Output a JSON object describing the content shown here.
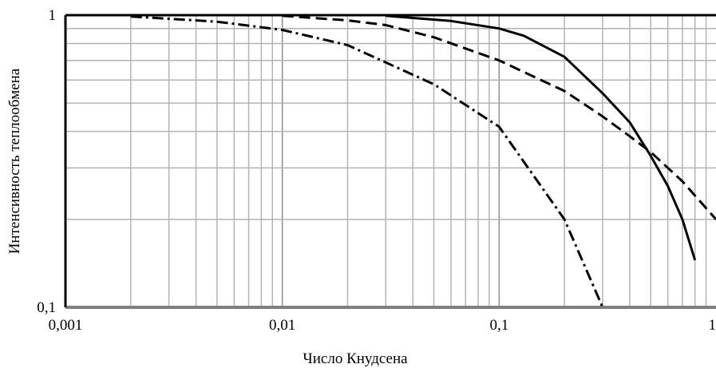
{
  "chart_data": {
    "type": "line",
    "x_scale": "log",
    "y_scale": "log",
    "xlabel": "Число Кнудсена",
    "ylabel": "Интенсивность теплообмена",
    "xlim": [
      0.001,
      1
    ],
    "ylim": [
      0.1,
      1
    ],
    "x_ticks": [
      "0,001",
      "0,01",
      "0,1",
      "1"
    ],
    "y_ticks": [
      "0,1",
      "1"
    ],
    "grid": true,
    "series": [
      {
        "style": "solid",
        "points": [
          [
            0.03,
            0.995
          ],
          [
            0.06,
            0.955
          ],
          [
            0.1,
            0.9
          ],
          [
            0.13,
            0.85
          ],
          [
            0.2,
            0.72
          ],
          [
            0.3,
            0.54
          ],
          [
            0.4,
            0.43
          ],
          [
            0.5,
            0.33
          ],
          [
            0.6,
            0.26
          ],
          [
            0.7,
            0.2
          ],
          [
            0.8,
            0.145
          ]
        ]
      },
      {
        "style": "dash",
        "points": [
          [
            0.01,
            0.995
          ],
          [
            0.02,
            0.96
          ],
          [
            0.03,
            0.925
          ],
          [
            0.05,
            0.84
          ],
          [
            0.1,
            0.7
          ],
          [
            0.2,
            0.55
          ],
          [
            0.3,
            0.45
          ],
          [
            0.4,
            0.385
          ],
          [
            0.5,
            0.34
          ],
          [
            0.7,
            0.27
          ],
          [
            1.0,
            0.2
          ]
        ]
      },
      {
        "style": "dash-dot",
        "points": [
          [
            0.002,
            0.99
          ],
          [
            0.005,
            0.95
          ],
          [
            0.01,
            0.89
          ],
          [
            0.02,
            0.79
          ],
          [
            0.05,
            0.58
          ],
          [
            0.1,
            0.415
          ],
          [
            0.2,
            0.2
          ],
          [
            0.3,
            0.1
          ]
        ]
      }
    ]
  }
}
